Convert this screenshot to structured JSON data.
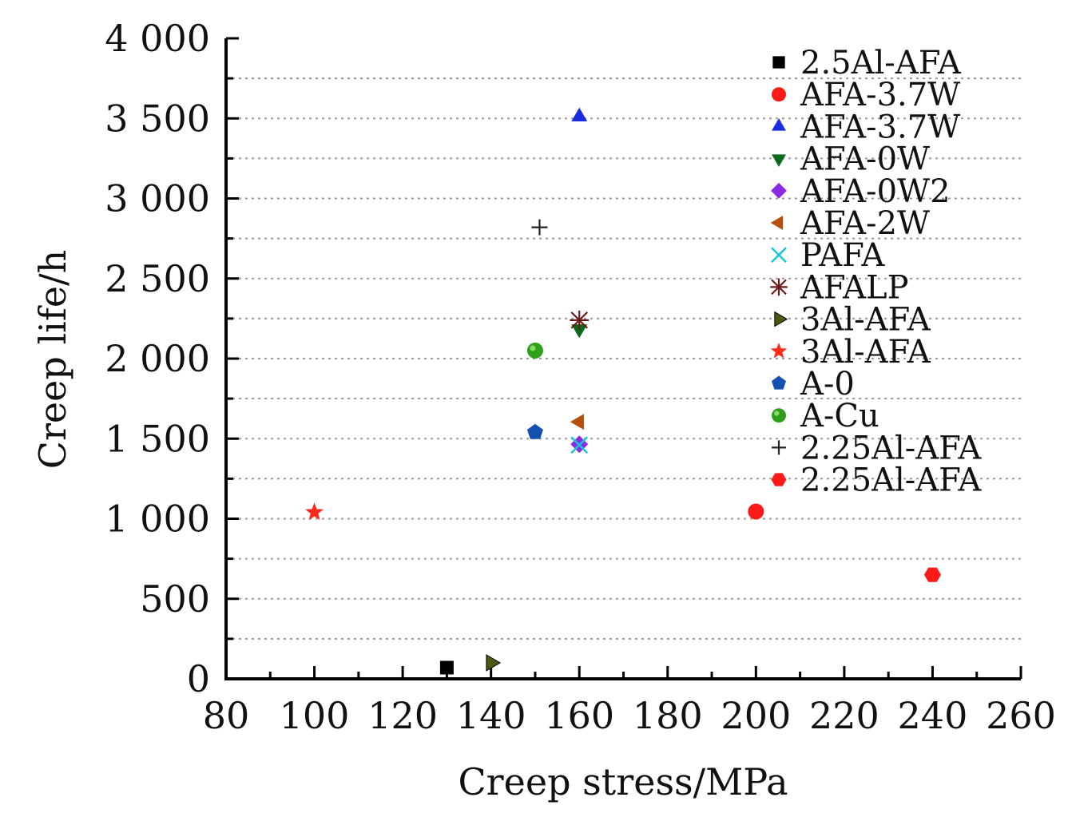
{
  "chart_data": {
    "type": "scatter",
    "title": "",
    "xlabel": "Creep stress/MPa",
    "ylabel": "Creep life/h",
    "xlim": [
      80,
      260
    ],
    "ylim": [
      0,
      4000
    ],
    "x_major_ticks": [
      80,
      100,
      120,
      140,
      160,
      180,
      200,
      220,
      240,
      260
    ],
    "x_tick_labels": [
      "80",
      "100",
      "120",
      "140",
      "160",
      "180",
      "200",
      "220",
      "240",
      "260"
    ],
    "x_minor_step": 10,
    "y_major_ticks": [
      0,
      500,
      1000,
      1500,
      2000,
      2500,
      3000,
      3500,
      4000
    ],
    "y_tick_labels": [
      "0",
      "500",
      "1 000",
      "1 500",
      "2 000",
      "2 500",
      "3 000",
      "3 500",
      "4 000"
    ],
    "y_minor_step": 250,
    "grid": "horizontal dotted",
    "legend_position": "top-right",
    "series": [
      {
        "name": "2.5Al-AFA",
        "marker": "square",
        "color": "#000000",
        "points": [
          [
            130,
            70
          ]
        ]
      },
      {
        "name": "AFA-3.7W",
        "marker": "circle",
        "color": "#ff1a1a",
        "points": [
          [
            200,
            1045
          ]
        ]
      },
      {
        "name": "AFA-3.7W",
        "marker": "triangle-up",
        "color": "#1a2be0",
        "points": [
          [
            160,
            3510
          ]
        ]
      },
      {
        "name": "AFA-0W",
        "marker": "triangle-down",
        "color": "#0a6b1a",
        "points": [
          [
            160,
            2185
          ]
        ]
      },
      {
        "name": "AFA-0W2",
        "marker": "diamond",
        "color": "#8a2be2",
        "points": [
          [
            160,
            1465
          ]
        ]
      },
      {
        "name": "AFA-2W",
        "marker": "triangle-left",
        "color": "#b5500f",
        "points": [
          [
            160,
            1605
          ]
        ]
      },
      {
        "name": "PAFA",
        "marker": "x",
        "color": "#14c8d8",
        "points": [
          [
            160,
            1460
          ]
        ]
      },
      {
        "name": "AFALP",
        "marker": "asterisk",
        "color": "#6b1a1a",
        "points": [
          [
            160,
            2240
          ]
        ]
      },
      {
        "name": "3Al-AFA",
        "marker": "triangle-right",
        "color": "#4a5a10",
        "points": [
          [
            140,
            100
          ]
        ]
      },
      {
        "name": "3Al-AFA",
        "marker": "star",
        "color": "#ff2a1a",
        "points": [
          [
            100,
            1040
          ]
        ]
      },
      {
        "name": "A-0",
        "marker": "pentagon",
        "color": "#1450b0",
        "points": [
          [
            150,
            1540
          ]
        ]
      },
      {
        "name": "A-Cu",
        "marker": "sphere",
        "color": "#2ea01a",
        "points": [
          [
            150,
            2050
          ]
        ]
      },
      {
        "name": "2.25Al-AFA",
        "marker": "plus",
        "color": "#222222",
        "points": [
          [
            151,
            2820
          ]
        ]
      },
      {
        "name": "2.25Al-AFA",
        "marker": "hexagon",
        "color": "#ff1a1a",
        "points": [
          [
            240,
            650
          ]
        ]
      }
    ]
  }
}
